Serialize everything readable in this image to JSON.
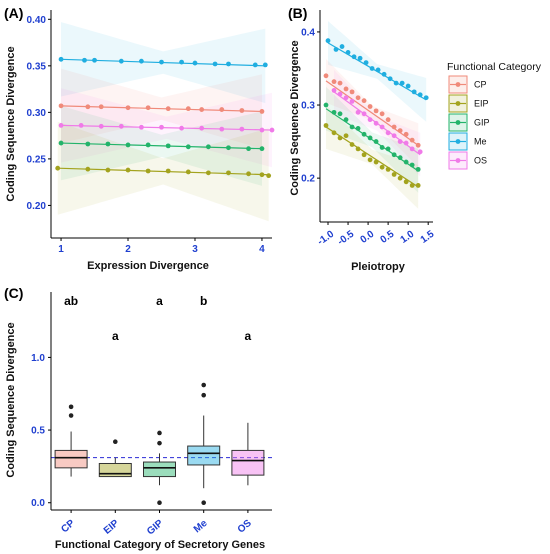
{
  "panels": {
    "a": {
      "label": "(A)"
    },
    "b": {
      "label": "(B)"
    },
    "c": {
      "label": "(C)"
    }
  },
  "legend": {
    "title": "Functional Category"
  },
  "colors": {
    "CP": "#F08A7A",
    "EIP": "#A3A31E",
    "GIP": "#22B36A",
    "Me": "#20AEE0",
    "OS": "#F07AE8"
  },
  "chart_data": [
    {
      "type": "scatter",
      "panel": "A",
      "xlabel": "Expression Divergence",
      "ylabel": "Coding Sequence Divergence",
      "xlim": [
        0.85,
        4.15
      ],
      "ylim": [
        0.165,
        0.41
      ],
      "xticks": [
        1,
        2,
        3,
        4
      ],
      "yticks": [
        0.2,
        0.25,
        0.3,
        0.35,
        0.4
      ],
      "ytick_labels": [
        "0.20",
        "0.25",
        "0.30",
        "0.35",
        "0.40"
      ],
      "series": [
        {
          "name": "Me",
          "x": [
            1.0,
            1.35,
            1.5,
            1.9,
            2.2,
            2.5,
            2.8,
            3.0,
            3.3,
            3.5,
            3.9,
            4.05
          ],
          "y": [
            0.357,
            0.356,
            0.356,
            0.355,
            0.355,
            0.354,
            0.354,
            0.353,
            0.352,
            0.352,
            0.351,
            0.351
          ],
          "fit": [
            0.357,
            0.35
          ],
          "band": [
            0.04,
            0.012,
            0.04
          ]
        },
        {
          "name": "CP",
          "x": [
            1.0,
            1.4,
            1.6,
            2.0,
            2.3,
            2.6,
            2.9,
            3.1,
            3.4,
            3.7,
            4.0
          ],
          "y": [
            0.307,
            0.306,
            0.306,
            0.305,
            0.305,
            0.304,
            0.304,
            0.303,
            0.303,
            0.302,
            0.301
          ],
          "fit": [
            0.307,
            0.301
          ],
          "band": [
            0.04,
            0.012,
            0.04
          ]
        },
        {
          "name": "OS",
          "x": [
            1.0,
            1.3,
            1.6,
            1.9,
            2.2,
            2.5,
            2.8,
            3.1,
            3.4,
            3.7,
            4.0,
            4.15
          ],
          "y": [
            0.286,
            0.286,
            0.285,
            0.285,
            0.284,
            0.284,
            0.283,
            0.283,
            0.282,
            0.282,
            0.281,
            0.281
          ],
          "fit": [
            0.286,
            0.281
          ],
          "band": [
            0.04,
            0.012,
            0.04
          ]
        },
        {
          "name": "GIP",
          "x": [
            1.0,
            1.4,
            1.7,
            2.0,
            2.3,
            2.6,
            2.9,
            3.2,
            3.5,
            3.8,
            4.0
          ],
          "y": [
            0.267,
            0.266,
            0.266,
            0.265,
            0.265,
            0.264,
            0.263,
            0.263,
            0.262,
            0.261,
            0.261
          ],
          "fit": [
            0.267,
            0.261
          ],
          "band": [
            0.04,
            0.012,
            0.04
          ]
        },
        {
          "name": "EIP",
          "x": [
            0.95,
            1.4,
            1.7,
            2.0,
            2.3,
            2.6,
            2.9,
            3.2,
            3.5,
            3.8,
            4.0,
            4.1
          ],
          "y": [
            0.24,
            0.239,
            0.238,
            0.238,
            0.237,
            0.237,
            0.236,
            0.235,
            0.235,
            0.234,
            0.233,
            0.232
          ],
          "fit": [
            0.24,
            0.233
          ],
          "band": [
            0.05,
            0.014,
            0.05
          ]
        }
      ]
    },
    {
      "type": "scatter",
      "panel": "B",
      "xlabel": "Pleiotropy",
      "ylabel": "Coding Sequence Divergence",
      "xlim": [
        -1.2,
        1.62
      ],
      "ylim": [
        0.14,
        0.43
      ],
      "xticks": [
        -1.0,
        -0.5,
        0.0,
        0.5,
        1.0,
        1.5
      ],
      "xtick_labels": [
        "-1.0",
        "-0.5",
        "0.0",
        "0.5",
        "1.0",
        "1.5"
      ],
      "yticks": [
        0.2,
        0.3,
        0.4
      ],
      "ytick_labels": [
        "0.2",
        "0.3",
        "0.4"
      ],
      "series": [
        {
          "name": "Me",
          "x": [
            -1.0,
            -0.8,
            -0.65,
            -0.5,
            -0.35,
            -0.2,
            -0.05,
            0.1,
            0.25,
            0.4,
            0.55,
            0.7,
            0.85,
            1.0,
            1.15,
            1.3,
            1.45
          ],
          "y": [
            0.388,
            0.376,
            0.38,
            0.372,
            0.366,
            0.364,
            0.358,
            0.35,
            0.348,
            0.342,
            0.336,
            0.33,
            0.33,
            0.326,
            0.318,
            0.314,
            0.31
          ],
          "fit": [
            0.385,
            0.307
          ],
          "band": [
            0.03,
            0.01,
            0.03
          ]
        },
        {
          "name": "CP",
          "x": [
            -1.05,
            -0.85,
            -0.7,
            -0.55,
            -0.4,
            -0.25,
            -0.1,
            0.05,
            0.2,
            0.35,
            0.5,
            0.65,
            0.8,
            0.95,
            1.1,
            1.25
          ],
          "y": [
            0.34,
            0.332,
            0.33,
            0.322,
            0.318,
            0.31,
            0.306,
            0.298,
            0.292,
            0.288,
            0.28,
            0.27,
            0.265,
            0.26,
            0.252,
            0.245
          ],
          "fit": [
            0.333,
            0.245
          ],
          "band": [
            0.03,
            0.01,
            0.03
          ]
        },
        {
          "name": "OS",
          "x": [
            -0.85,
            -0.7,
            -0.55,
            -0.4,
            -0.25,
            -0.1,
            0.05,
            0.2,
            0.35,
            0.5,
            0.65,
            0.8,
            0.95,
            1.1,
            1.3
          ],
          "y": [
            0.32,
            0.315,
            0.31,
            0.305,
            0.29,
            0.288,
            0.28,
            0.275,
            0.27,
            0.262,
            0.258,
            0.25,
            0.248,
            0.24,
            0.236
          ],
          "fit": [
            0.318,
            0.232
          ],
          "band": [
            0.03,
            0.01,
            0.03
          ]
        },
        {
          "name": "GIP",
          "x": [
            -1.05,
            -0.85,
            -0.7,
            -0.55,
            -0.4,
            -0.25,
            -0.1,
            0.05,
            0.2,
            0.35,
            0.5,
            0.65,
            0.8,
            0.95,
            1.1,
            1.25
          ],
          "y": [
            0.3,
            0.29,
            0.288,
            0.28,
            0.27,
            0.268,
            0.26,
            0.255,
            0.25,
            0.242,
            0.24,
            0.232,
            0.228,
            0.222,
            0.218,
            0.212
          ],
          "fit": [
            0.295,
            0.21
          ],
          "band": [
            0.03,
            0.01,
            0.03
          ]
        },
        {
          "name": "EIP",
          "x": [
            -1.05,
            -0.85,
            -0.7,
            -0.55,
            -0.4,
            -0.25,
            -0.1,
            0.05,
            0.2,
            0.35,
            0.5,
            0.65,
            0.8,
            0.95,
            1.1,
            1.25
          ],
          "y": [
            0.272,
            0.262,
            0.255,
            0.258,
            0.246,
            0.24,
            0.232,
            0.225,
            0.222,
            0.215,
            0.212,
            0.205,
            0.2,
            0.195,
            0.19,
            0.19
          ],
          "fit": [
            0.27,
            0.188
          ],
          "band": [
            0.03,
            0.01,
            0.03
          ]
        }
      ]
    },
    {
      "type": "box",
      "panel": "C",
      "xlabel": "Functional Category of Secretory Genes",
      "ylabel": "Coding Sequence Divergence",
      "categories": [
        "CP",
        "EIP",
        "GIP",
        "Me",
        "OS"
      ],
      "ylim": [
        -0.05,
        1.45
      ],
      "yticks": [
        0.0,
        0.5,
        1.0
      ],
      "ytick_labels": [
        "0.0",
        "0.5",
        "1.0"
      ],
      "reference_line": 0.31,
      "boxes": [
        {
          "name": "CP",
          "q1": 0.24,
          "median": 0.31,
          "q3": 0.36,
          "whisker_low": 0.18,
          "whisker_high": 0.49,
          "outliers": [
            0.6,
            0.66
          ],
          "letter": "ab"
        },
        {
          "name": "EIP",
          "q1": 0.18,
          "median": 0.2,
          "q3": 0.27,
          "whisker_low": 0.18,
          "whisker_high": 0.31,
          "outliers": [
            0.42
          ],
          "letter": "a"
        },
        {
          "name": "GIP",
          "q1": 0.18,
          "median": 0.24,
          "q3": 0.28,
          "whisker_low": 0.12,
          "whisker_high": 0.34,
          "outliers": [
            0.41,
            0.48,
            0.0
          ],
          "letter": "a"
        },
        {
          "name": "Me",
          "q1": 0.26,
          "median": 0.34,
          "q3": 0.39,
          "whisker_low": 0.1,
          "whisker_high": 0.6,
          "outliers": [
            0.74,
            0.81,
            0.0
          ],
          "letter": "b"
        },
        {
          "name": "OS",
          "q1": 0.19,
          "median": 0.29,
          "q3": 0.36,
          "whisker_low": 0.12,
          "whisker_high": 0.55,
          "outliers": [],
          "letter": "a"
        }
      ]
    }
  ]
}
